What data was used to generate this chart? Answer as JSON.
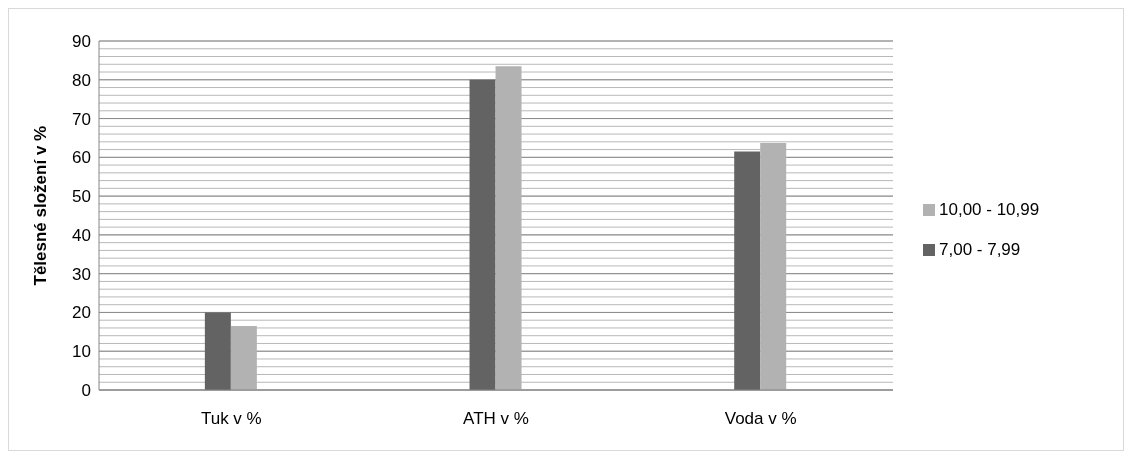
{
  "chart_data": {
    "type": "bar",
    "ylabel": "Tělesné složení v %",
    "categories": [
      "Tuk v %",
      "ATH v %",
      "Voda v %"
    ],
    "series": [
      {
        "name": "7,00 - 7,99",
        "color": "#636363",
        "values": [
          20,
          80,
          61.5
        ]
      },
      {
        "name": "10,00 - 10,99",
        "color": "#b2b2b2",
        "values": [
          16.5,
          83.5,
          63.7
        ]
      }
    ],
    "ylim": [
      0,
      90
    ],
    "yticks": [
      0,
      {
        "value": 2,
        "label": null
      },
      {
        "value": 4,
        "label": null
      },
      {
        "value": 6,
        "label": null
      },
      {
        "value": 8,
        "label": null
      },
      10,
      {
        "value": 12,
        "label": null
      },
      {
        "value": 14,
        "label": null
      },
      {
        "value": 16,
        "label": null
      },
      {
        "value": 18,
        "label": null
      },
      20,
      {
        "value": 22,
        "label": null
      },
      {
        "value": 24,
        "label": null
      },
      {
        "value": 26,
        "label": null
      },
      {
        "value": 28,
        "label": null
      },
      30,
      {
        "value": 32,
        "label": null
      },
      {
        "value": 34,
        "label": null
      },
      {
        "value": 36,
        "label": null
      },
      {
        "value": 38,
        "label": null
      },
      40,
      {
        "value": 42,
        "label": null
      },
      {
        "value": 44,
        "label": null
      },
      {
        "value": 46,
        "label": null
      },
      {
        "value": 48,
        "label": null
      },
      50,
      {
        "value": 52,
        "label": null
      },
      {
        "value": 54,
        "label": null
      },
      {
        "value": 56,
        "label": null
      },
      {
        "value": 58,
        "label": null
      },
      60,
      {
        "value": 62,
        "label": null
      },
      {
        "value": 64,
        "label": null
      },
      {
        "value": 66,
        "label": null
      },
      {
        "value": 68,
        "label": null
      },
      70,
      {
        "value": 72,
        "label": null
      },
      {
        "value": 74,
        "label": null
      },
      {
        "value": 76,
        "label": null
      },
      {
        "value": 78,
        "label": null
      },
      80,
      {
        "value": 82,
        "label": null
      },
      {
        "value": 84,
        "label": null
      },
      {
        "value": 86,
        "label": null
      },
      {
        "value": 88,
        "label": null
      },
      90
    ],
    "grid": "y",
    "legend": "right"
  }
}
